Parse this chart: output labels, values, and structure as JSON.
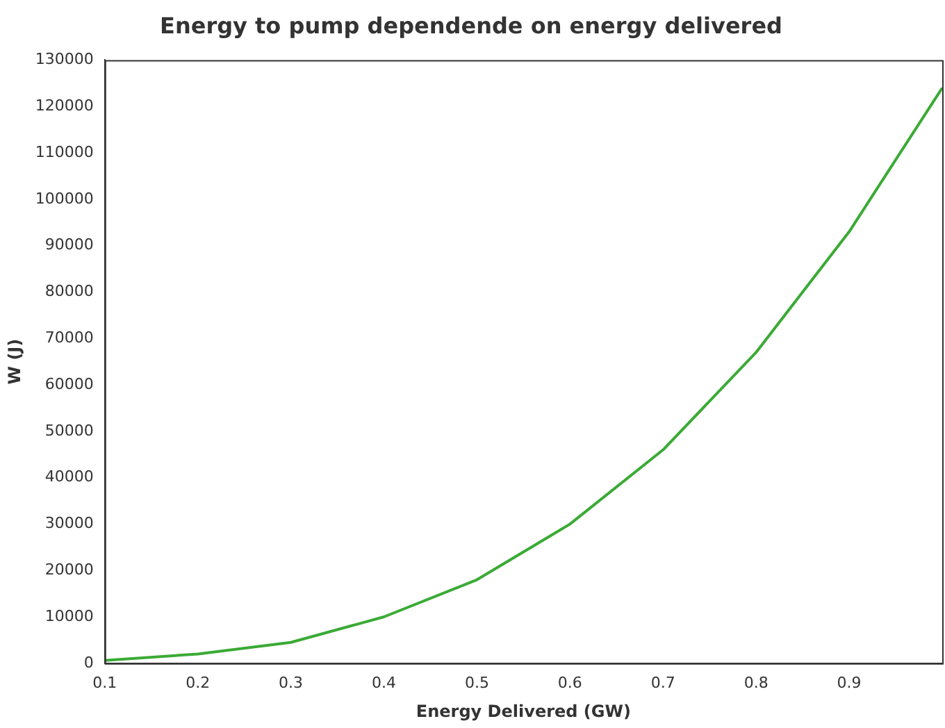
{
  "chart_data": {
    "type": "line",
    "title": "Energy to pump dependende on energy delivered",
    "xlabel": "Energy Delivered (GW)",
    "ylabel": "W (J)",
    "x": [
      0.1,
      0.2,
      0.3,
      0.4,
      0.5,
      0.6,
      0.7,
      0.8,
      0.9,
      1.0
    ],
    "series": [
      {
        "color": "#3aaa35",
        "values": [
          600,
          2000,
          4500,
          10000,
          18000,
          30000,
          46000,
          67000,
          93000,
          124000
        ]
      }
    ],
    "xlim": [
      0.1,
      1.0
    ],
    "xticks": [
      0.1,
      0.2,
      0.3,
      0.4,
      0.5,
      0.6,
      0.7,
      0.8,
      0.9
    ],
    "ylim": [
      0,
      130000
    ],
    "yticks": [
      0,
      10000,
      20000,
      30000,
      40000,
      50000,
      60000,
      70000,
      80000,
      90000,
      100000,
      110000,
      120000,
      130000
    ],
    "grid": false,
    "legend": false,
    "marker": "none",
    "line_style": "solid"
  }
}
